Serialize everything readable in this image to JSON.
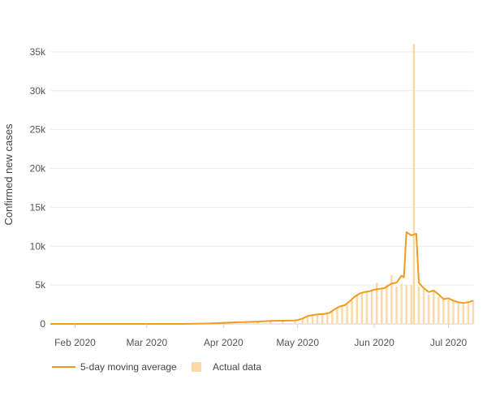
{
  "colors": {
    "line": "#f29c1f",
    "bars": "#fcd9a6",
    "grid": "#ececec",
    "text": "#555555"
  },
  "legend": {
    "line_label": "5-day moving average",
    "bars_label": "Actual data"
  },
  "chart_data": {
    "type": "bar",
    "ylabel": "Confirmed new cases",
    "xlabel": "",
    "ylim": [
      0,
      37500
    ],
    "y_ticks": [
      {
        "value": 0,
        "label": "0"
      },
      {
        "value": 5000,
        "label": "5k"
      },
      {
        "value": 10000,
        "label": "10k"
      },
      {
        "value": 15000,
        "label": "15k"
      },
      {
        "value": 20000,
        "label": "20k"
      },
      {
        "value": 25000,
        "label": "25k"
      },
      {
        "value": 30000,
        "label": "30k"
      },
      {
        "value": 35000,
        "label": "35k"
      }
    ],
    "x_ticks": [
      {
        "date": "2020-02-01",
        "label": "Feb 2020"
      },
      {
        "date": "2020-03-01",
        "label": "Mar 2020"
      },
      {
        "date": "2020-04-01",
        "label": "Apr 2020"
      },
      {
        "date": "2020-05-01",
        "label": "May 2020"
      },
      {
        "date": "2020-06-01",
        "label": "Jun 2020"
      },
      {
        "date": "2020-07-01",
        "label": "Jul 2020"
      }
    ],
    "x_range": [
      "2020-01-22",
      "2020-07-11"
    ],
    "grid": true,
    "legend_position": "bottom-left",
    "series": [
      {
        "name": "Actual data",
        "kind": "bar",
        "points": [
          [
            "2020-01-25",
            0
          ],
          [
            "2020-02-01",
            0
          ],
          [
            "2020-02-08",
            0
          ],
          [
            "2020-02-15",
            0
          ],
          [
            "2020-02-22",
            0
          ],
          [
            "2020-03-01",
            0
          ],
          [
            "2020-03-08",
            0
          ],
          [
            "2020-03-15",
            0
          ],
          [
            "2020-03-22",
            50
          ],
          [
            "2020-03-29",
            150
          ],
          [
            "2020-04-05",
            250
          ],
          [
            "2020-04-10",
            300
          ],
          [
            "2020-04-15",
            350
          ],
          [
            "2020-04-20",
            420
          ],
          [
            "2020-04-25",
            450
          ],
          [
            "2020-04-30",
            550
          ],
          [
            "2020-05-03",
            650
          ],
          [
            "2020-05-05",
            900
          ],
          [
            "2020-05-07",
            1100
          ],
          [
            "2020-05-09",
            1200
          ],
          [
            "2020-05-11",
            1300
          ],
          [
            "2020-05-13",
            1400
          ],
          [
            "2020-05-15",
            1600
          ],
          [
            "2020-05-17",
            2000
          ],
          [
            "2020-05-19",
            2300
          ],
          [
            "2020-05-21",
            2600
          ],
          [
            "2020-05-23",
            3000
          ],
          [
            "2020-05-25",
            3600
          ],
          [
            "2020-05-27",
            4000
          ],
          [
            "2020-05-29",
            4200
          ],
          [
            "2020-05-31",
            4500
          ],
          [
            "2020-06-02",
            5300
          ],
          [
            "2020-06-04",
            4500
          ],
          [
            "2020-06-06",
            5000
          ],
          [
            "2020-06-08",
            6300
          ],
          [
            "2020-06-10",
            4800
          ],
          [
            "2020-06-12",
            5200
          ],
          [
            "2020-06-14",
            5000
          ],
          [
            "2020-06-16",
            5000
          ],
          [
            "2020-06-17",
            36000
          ],
          [
            "2020-06-19",
            4800
          ],
          [
            "2020-06-21",
            4600
          ],
          [
            "2020-06-23",
            3800
          ],
          [
            "2020-06-25",
            4200
          ],
          [
            "2020-06-27",
            3500
          ],
          [
            "2020-06-29",
            3300
          ],
          [
            "2020-07-01",
            3100
          ],
          [
            "2020-07-03",
            3000
          ],
          [
            "2020-07-05",
            2800
          ],
          [
            "2020-07-07",
            2600
          ],
          [
            "2020-07-09",
            2700
          ],
          [
            "2020-07-11",
            3000
          ]
        ]
      },
      {
        "name": "5-day moving average",
        "kind": "line",
        "points": [
          [
            "2020-01-22",
            0
          ],
          [
            "2020-03-15",
            0
          ],
          [
            "2020-03-25",
            50
          ],
          [
            "2020-04-05",
            200
          ],
          [
            "2020-04-15",
            300
          ],
          [
            "2020-04-20",
            400
          ],
          [
            "2020-04-30",
            450
          ],
          [
            "2020-05-01",
            500
          ],
          [
            "2020-05-03",
            700
          ],
          [
            "2020-05-05",
            1000
          ],
          [
            "2020-05-07",
            1150
          ],
          [
            "2020-05-10",
            1250
          ],
          [
            "2020-05-12",
            1300
          ],
          [
            "2020-05-14",
            1450
          ],
          [
            "2020-05-16",
            1900
          ],
          [
            "2020-05-18",
            2250
          ],
          [
            "2020-05-20",
            2400
          ],
          [
            "2020-05-22",
            2900
          ],
          [
            "2020-05-24",
            3500
          ],
          [
            "2020-05-26",
            3900
          ],
          [
            "2020-05-28",
            4100
          ],
          [
            "2020-05-30",
            4200
          ],
          [
            "2020-06-01",
            4400
          ],
          [
            "2020-06-03",
            4500
          ],
          [
            "2020-06-05",
            4600
          ],
          [
            "2020-06-07",
            5000
          ],
          [
            "2020-06-08",
            5200
          ],
          [
            "2020-06-10",
            5300
          ],
          [
            "2020-06-12",
            6200
          ],
          [
            "2020-06-13",
            6000
          ],
          [
            "2020-06-14",
            11800
          ],
          [
            "2020-06-16",
            11400
          ],
          [
            "2020-06-18",
            11600
          ],
          [
            "2020-06-19",
            5300
          ],
          [
            "2020-06-21",
            4600
          ],
          [
            "2020-06-23",
            4100
          ],
          [
            "2020-06-25",
            4300
          ],
          [
            "2020-06-27",
            3800
          ],
          [
            "2020-06-29",
            3200
          ],
          [
            "2020-07-01",
            3300
          ],
          [
            "2020-07-03",
            3000
          ],
          [
            "2020-07-05",
            2800
          ],
          [
            "2020-07-07",
            2700
          ],
          [
            "2020-07-09",
            2800
          ],
          [
            "2020-07-11",
            3000
          ]
        ]
      }
    ]
  }
}
